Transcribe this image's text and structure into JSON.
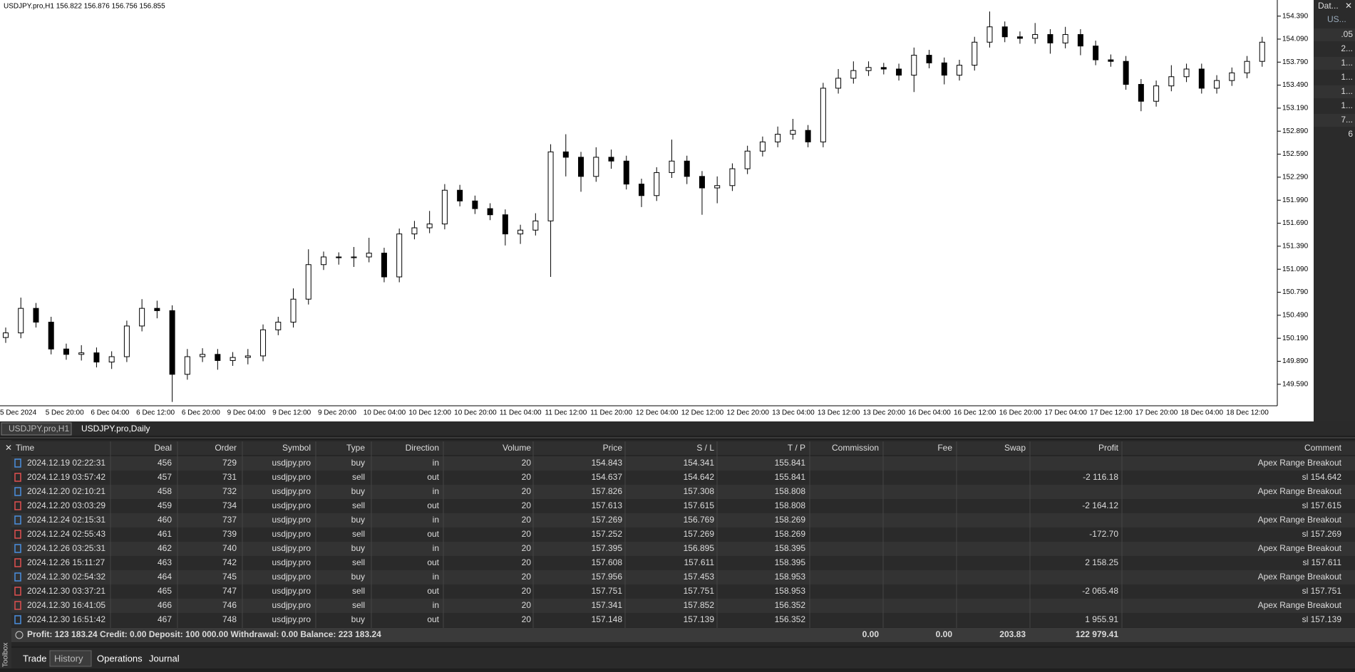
{
  "chart_data": {
    "type": "candlestick",
    "title": "USDJPY.pro,H1  156.822 156.876 156.756 156.855",
    "up_color": "#ffffff",
    "down_color": "#000000",
    "outline_color": "#000000",
    "ylim": [
      149.31,
      154.6
    ],
    "yticks": [
      {
        "value": 149.59,
        "label": "149.590"
      },
      {
        "value": 149.89,
        "label": "149.890"
      },
      {
        "value": 150.19,
        "label": "150.190"
      },
      {
        "value": 150.49,
        "label": "150.490"
      },
      {
        "value": 150.79,
        "label": "150.790"
      },
      {
        "value": 151.09,
        "label": "151.090"
      },
      {
        "value": 151.39,
        "label": "151.390"
      },
      {
        "value": 151.69,
        "label": "151.690"
      },
      {
        "value": 151.99,
        "label": "151.990"
      },
      {
        "value": 152.29,
        "label": "152.290"
      },
      {
        "value": 152.59,
        "label": "152.590"
      },
      {
        "value": 152.89,
        "label": "152.890"
      },
      {
        "value": 153.19,
        "label": "153.190"
      },
      {
        "value": 153.49,
        "label": "153.490"
      },
      {
        "value": 153.79,
        "label": "153.790"
      },
      {
        "value": 154.09,
        "label": "154.090"
      },
      {
        "value": 154.39,
        "label": "154.390"
      }
    ],
    "categories": [
      "5 Dec 2024",
      null,
      null,
      "5 Dec 20:00",
      null,
      null,
      "6 Dec 04:00",
      null,
      null,
      "6 Dec 12:00",
      null,
      null,
      "6 Dec 20:00",
      null,
      null,
      "9 Dec 04:00",
      null,
      null,
      "9 Dec 12:00",
      null,
      null,
      "9 Dec 20:00",
      null,
      null,
      "10 Dec 04:00",
      null,
      null,
      "10 Dec 12:00",
      null,
      null,
      "10 Dec 20:00",
      null,
      null,
      "11 Dec 04:00",
      null,
      null,
      "11 Dec 12:00",
      null,
      null,
      "11 Dec 20:00",
      null,
      null,
      "12 Dec 04:00",
      null,
      null,
      "12 Dec 12:00",
      null,
      null,
      "12 Dec 20:00",
      null,
      null,
      "13 Dec 04:00",
      null,
      null,
      "13 Dec 12:00",
      null,
      null,
      "13 Dec 20:00",
      null,
      null,
      "16 Dec 04:00",
      null,
      null,
      "16 Dec 12:00",
      null,
      null,
      "16 Dec 20:00",
      null,
      null,
      "17 Dec 04:00",
      null,
      null,
      "17 Dec 12:00",
      null,
      null,
      "17 Dec 20:00",
      null,
      null,
      "18 Dec 04:00",
      null,
      null,
      "18 Dec 12:00",
      null,
      null
    ],
    "open": [
      150.2,
      150.26,
      150.58,
      150.4,
      150.05,
      149.98,
      150.0,
      149.88,
      149.95,
      150.35,
      150.58,
      150.55,
      149.72,
      149.95,
      149.98,
      149.9,
      149.94,
      149.96,
      150.3,
      150.4,
      150.7,
      151.15,
      151.25,
      151.24,
      151.25,
      151.3,
      150.99,
      151.55,
      151.63,
      151.68,
      152.12,
      151.98,
      151.88,
      151.8,
      151.55,
      151.6,
      151.72,
      152.62,
      152.55,
      152.3,
      152.55,
      152.5,
      152.2,
      152.05,
      152.35,
      152.5,
      152.3,
      152.15,
      152.18,
      152.4,
      152.63,
      152.75,
      152.85,
      152.9,
      152.75,
      153.45,
      153.58,
      153.68,
      153.72,
      153.7,
      153.62,
      153.88,
      153.78,
      153.62,
      153.75,
      154.05,
      154.25,
      154.12,
      154.1,
      154.15,
      154.04,
      154.15,
      154.0,
      153.82,
      153.8,
      153.5,
      153.28,
      153.48,
      153.6,
      153.7,
      153.45,
      153.55,
      153.65,
      153.8
    ],
    "high": [
      150.33,
      150.72,
      150.65,
      150.47,
      150.12,
      150.1,
      150.07,
      150.02,
      150.42,
      150.7,
      150.68,
      150.62,
      150.05,
      150.06,
      150.05,
      150.01,
      150.05,
      150.37,
      150.47,
      150.84,
      151.35,
      151.32,
      151.31,
      151.38,
      151.5,
      151.37,
      151.62,
      151.72,
      151.85,
      152.2,
      152.19,
      152.05,
      151.95,
      151.87,
      151.67,
      151.82,
      152.72,
      152.85,
      152.62,
      152.68,
      152.65,
      152.57,
      152.27,
      152.42,
      152.78,
      152.57,
      152.37,
      152.3,
      152.47,
      152.7,
      152.82,
      152.95,
      153.05,
      152.97,
      153.52,
      153.7,
      153.8,
      153.8,
      153.78,
      153.77,
      153.98,
      153.95,
      153.85,
      153.82,
      154.12,
      154.45,
      154.32,
      154.19,
      154.3,
      154.22,
      154.25,
      154.22,
      154.07,
      153.89,
      153.87,
      153.57,
      153.55,
      153.75,
      153.77,
      153.77,
      153.62,
      153.72,
      153.87,
      154.12
    ],
    "low": [
      150.13,
      150.19,
      150.33,
      149.98,
      149.91,
      149.9,
      149.81,
      149.79,
      149.88,
      150.28,
      150.45,
      149.36,
      149.65,
      149.88,
      149.78,
      149.83,
      149.85,
      149.89,
      150.23,
      150.33,
      150.63,
      151.08,
      151.15,
      151.12,
      151.18,
      150.92,
      150.92,
      151.48,
      151.56,
      151.61,
      151.91,
      151.81,
      151.73,
      151.4,
      151.42,
      151.53,
      150.99,
      152.3,
      152.1,
      152.23,
      152.4,
      152.13,
      151.9,
      151.98,
      152.28,
      152.2,
      151.8,
      151.95,
      152.11,
      152.33,
      152.56,
      152.68,
      152.78,
      152.68,
      152.68,
      153.38,
      153.51,
      153.61,
      153.63,
      153.55,
      153.4,
      153.71,
      153.5,
      153.55,
      153.68,
      153.98,
      154.05,
      154.03,
      154.03,
      153.9,
      153.97,
      153.88,
      153.75,
      153.73,
      153.43,
      153.15,
      153.21,
      153.41,
      153.53,
      153.38,
      153.38,
      153.48,
      153.58,
      153.73
    ],
    "close": [
      150.26,
      150.58,
      150.4,
      150.05,
      149.98,
      150.0,
      149.88,
      149.95,
      150.35,
      150.58,
      150.55,
      149.72,
      149.95,
      149.98,
      149.9,
      149.94,
      149.96,
      150.3,
      150.4,
      150.7,
      151.15,
      151.25,
      151.24,
      151.25,
      151.3,
      150.99,
      151.55,
      151.63,
      151.68,
      152.12,
      151.98,
      151.88,
      151.8,
      151.55,
      151.6,
      151.72,
      152.62,
      152.55,
      152.3,
      152.55,
      152.5,
      152.2,
      152.05,
      152.35,
      152.5,
      152.3,
      152.15,
      152.18,
      152.4,
      152.63,
      152.75,
      152.85,
      152.9,
      152.75,
      153.45,
      153.58,
      153.68,
      153.72,
      153.7,
      153.62,
      153.88,
      153.78,
      153.62,
      153.75,
      154.05,
      154.25,
      154.12,
      154.1,
      154.15,
      154.04,
      154.15,
      154.0,
      153.82,
      153.8,
      153.5,
      153.28,
      153.48,
      153.6,
      153.7,
      153.45,
      153.55,
      153.65,
      153.8,
      154.05
    ]
  },
  "chart_tabs": [
    "USDJPY.pro,H1",
    "USDJPY.pro,Daily"
  ],
  "data_window": {
    "title": "Dat...",
    "symbol": "US...",
    "values": [
      ".05",
      "2...",
      "1...",
      "1...",
      "1...",
      "1...",
      "7...",
      "6"
    ]
  },
  "table": {
    "columns": [
      "Time",
      "Deal",
      "Order",
      "Symbol",
      "Type",
      "Direction",
      "Volume",
      "Price",
      "S / L",
      "T / P",
      "Commission",
      "Fee",
      "Swap",
      "Profit",
      "Comment"
    ],
    "rows": [
      [
        "2024.12.19 02:22:31",
        "456",
        "729",
        "usdjpy.pro",
        "buy",
        "in",
        "20",
        "154.843",
        "154.341",
        "155.841",
        "",
        "",
        "",
        "",
        "Apex Range Breakout"
      ],
      [
        "2024.12.19 03:57:42",
        "457",
        "731",
        "usdjpy.pro",
        "sell",
        "out",
        "20",
        "154.637",
        "154.642",
        "155.841",
        "",
        "",
        "",
        "-2 116.18",
        "sl 154.642"
      ],
      [
        "2024.12.20 02:10:21",
        "458",
        "732",
        "usdjpy.pro",
        "buy",
        "in",
        "20",
        "157.826",
        "157.308",
        "158.808",
        "",
        "",
        "",
        "",
        "Apex Range Breakout"
      ],
      [
        "2024.12.20 03:03:29",
        "459",
        "734",
        "usdjpy.pro",
        "sell",
        "out",
        "20",
        "157.613",
        "157.615",
        "158.808",
        "",
        "",
        "",
        "-2 164.12",
        "sl 157.615"
      ],
      [
        "2024.12.24 02:15:31",
        "460",
        "737",
        "usdjpy.pro",
        "buy",
        "in",
        "20",
        "157.269",
        "156.769",
        "158.269",
        "",
        "",
        "",
        "",
        "Apex Range Breakout"
      ],
      [
        "2024.12.24 02:55:43",
        "461",
        "739",
        "usdjpy.pro",
        "sell",
        "out",
        "20",
        "157.252",
        "157.269",
        "158.269",
        "",
        "",
        "",
        "-172.70",
        "sl 157.269"
      ],
      [
        "2024.12.26 03:25:31",
        "462",
        "740",
        "usdjpy.pro",
        "buy",
        "in",
        "20",
        "157.395",
        "156.895",
        "158.395",
        "",
        "",
        "",
        "",
        "Apex Range Breakout"
      ],
      [
        "2024.12.26 15:11:27",
        "463",
        "742",
        "usdjpy.pro",
        "sell",
        "out",
        "20",
        "157.608",
        "157.611",
        "158.395",
        "",
        "",
        "",
        "2 158.25",
        "sl 157.611"
      ],
      [
        "2024.12.30 02:54:32",
        "464",
        "745",
        "usdjpy.pro",
        "buy",
        "in",
        "20",
        "157.956",
        "157.453",
        "158.953",
        "",
        "",
        "",
        "",
        "Apex Range Breakout"
      ],
      [
        "2024.12.30 03:37:21",
        "465",
        "747",
        "usdjpy.pro",
        "sell",
        "out",
        "20",
        "157.751",
        "157.751",
        "158.953",
        "",
        "",
        "",
        "-2 065.48",
        "sl 157.751"
      ],
      [
        "2024.12.30 16:41:05",
        "466",
        "746",
        "usdjpy.pro",
        "sell",
        "in",
        "20",
        "157.341",
        "157.852",
        "156.352",
        "",
        "",
        "",
        "",
        "Apex Range Breakout"
      ],
      [
        "2024.12.30 16:51:42",
        "467",
        "748",
        "usdjpy.pro",
        "buy",
        "out",
        "20",
        "157.148",
        "157.139",
        "156.352",
        "",
        "",
        "",
        "1 955.91",
        "sl 157.139"
      ]
    ],
    "summary": {
      "text": "Profit: 123 183.24  Credit: 0.00  Deposit: 100 000.00  Withdrawal: 0.00  Balance: 223 183.24",
      "commission": "0.00",
      "fee": "0.00",
      "swap": "203.83",
      "profit": "122 979.41"
    }
  },
  "bottom_tabs": [
    "Trade",
    "History",
    "Operations",
    "Journal"
  ],
  "toolbox_label": "Toolbox"
}
